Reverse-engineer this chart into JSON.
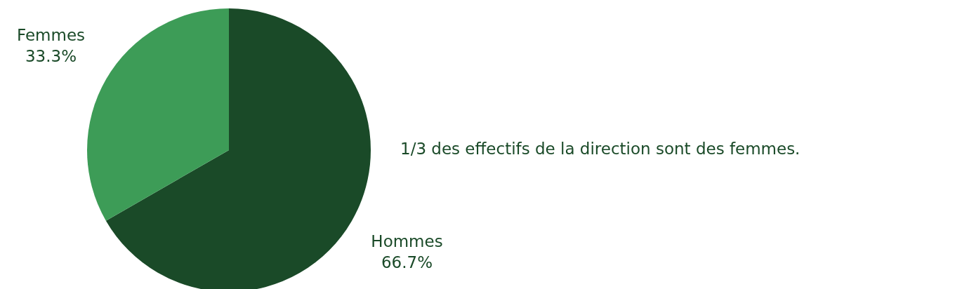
{
  "chart_data": {
    "type": "pie",
    "categories": [
      "Hommes",
      "Femmes"
    ],
    "values": [
      66.7,
      33.3
    ],
    "colors": [
      "#1a4a28",
      "#3d9c57"
    ],
    "value_labels": [
      "66.7%",
      "33.3%"
    ],
    "legend": false,
    "annotations": [
      "1/3 des effectifs de la direction sont des femmes."
    ]
  }
}
